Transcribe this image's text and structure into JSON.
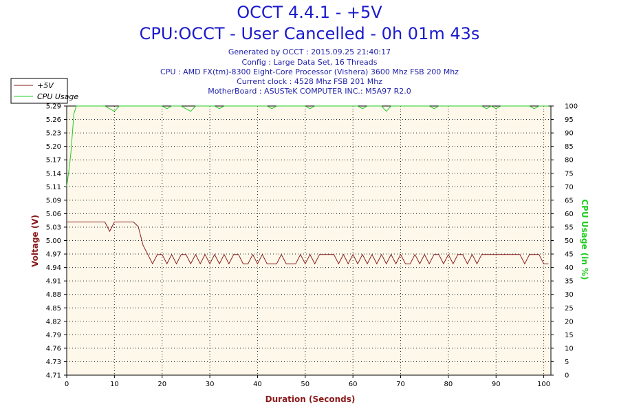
{
  "header": {
    "title": "OCCT 4.4.1 - +5V",
    "subtitle": "CPU:OCCT - User Cancelled - 0h 01m 43s",
    "info_lines": [
      "Generated by OCCT : 2015.09.25 21:40:17",
      "Config : Large Data Set, 16 Threads",
      "CPU : AMD FX(tm)-8300 Eight-Core Processor (Vishera) 3600 Mhz FSB 200 Mhz",
      "Current clock : 4528 Mhz FSB 201 Mhz",
      "MotherBoard : ASUSTeK COMPUTER INC.: M5A97 R2.0"
    ]
  },
  "colors": {
    "voltage": "#8b1a1a",
    "cpu": "#22cc22",
    "plot_bg": "#fdf8ea",
    "grid": "#222222"
  },
  "chart_data": {
    "type": "line",
    "xlabel": "Duration (Seconds)",
    "ylabel": "Voltage (V)",
    "y2label": "CPU Usage (in %)",
    "xlim": [
      0,
      101.5
    ],
    "ylim": [
      4.71,
      5.29
    ],
    "y2lim": [
      0,
      100
    ],
    "x_ticks": [
      0,
      10,
      20,
      30,
      40,
      50,
      60,
      70,
      80,
      90,
      100
    ],
    "y_ticks": [
      "4.71",
      "4.73",
      "4.76",
      "4.79",
      "4.82",
      "4.85",
      "4.88",
      "4.91",
      "4.94",
      "4.97",
      "5.00",
      "5.03",
      "5.06",
      "5.09",
      "5.11",
      "5.14",
      "5.17",
      "5.20",
      "5.23",
      "5.26",
      "5.29"
    ],
    "y2_ticks": [
      0,
      5,
      10,
      15,
      20,
      25,
      30,
      35,
      40,
      45,
      50,
      55,
      60,
      65,
      70,
      75,
      80,
      85,
      90,
      95,
      100
    ],
    "legend": {
      "position": "top-left",
      "entries": [
        "+5V",
        "CPU Usage"
      ]
    },
    "grid": true,
    "series": [
      {
        "name": "+5V",
        "axis": "left",
        "x": [
          0,
          1,
          2,
          3,
          4,
          5,
          6,
          7,
          8,
          9,
          10,
          11,
          12,
          13,
          14,
          15,
          16,
          17,
          18,
          19,
          20,
          21,
          22,
          23,
          24,
          25,
          26,
          27,
          28,
          29,
          30,
          31,
          32,
          33,
          34,
          35,
          36,
          37,
          38,
          39,
          40,
          41,
          42,
          43,
          44,
          45,
          46,
          47,
          48,
          49,
          50,
          51,
          52,
          53,
          54,
          55,
          56,
          57,
          58,
          59,
          60,
          61,
          62,
          63,
          64,
          65,
          66,
          67,
          68,
          69,
          70,
          71,
          72,
          73,
          74,
          75,
          76,
          77,
          78,
          79,
          80,
          81,
          82,
          83,
          84,
          85,
          86,
          87,
          88,
          89,
          90,
          91,
          92,
          93,
          94,
          95,
          96,
          97,
          98,
          99,
          100,
          101
        ],
        "values": [
          5.04,
          5.04,
          5.04,
          5.04,
          5.04,
          5.04,
          5.04,
          5.04,
          5.04,
          5.02,
          5.04,
          5.04,
          5.04,
          5.04,
          5.04,
          5.03,
          4.99,
          4.97,
          4.95,
          4.97,
          4.97,
          4.95,
          4.97,
          4.95,
          4.97,
          4.97,
          4.95,
          4.97,
          4.95,
          4.97,
          4.95,
          4.97,
          4.95,
          4.97,
          4.95,
          4.97,
          4.97,
          4.95,
          4.95,
          4.97,
          4.95,
          4.97,
          4.95,
          4.95,
          4.95,
          4.97,
          4.95,
          4.95,
          4.95,
          4.97,
          4.95,
          4.97,
          4.95,
          4.97,
          4.97,
          4.97,
          4.97,
          4.95,
          4.97,
          4.95,
          4.97,
          4.95,
          4.97,
          4.95,
          4.97,
          4.95,
          4.97,
          4.95,
          4.97,
          4.95,
          4.97,
          4.95,
          4.95,
          4.97,
          4.95,
          4.97,
          4.95,
          4.97,
          4.97,
          4.95,
          4.97,
          4.95,
          4.97,
          4.97,
          4.95,
          4.97,
          4.95,
          4.97,
          4.97,
          4.97,
          4.97,
          4.97,
          4.97,
          4.97,
          4.97,
          4.97,
          4.95,
          4.97,
          4.97,
          4.97,
          4.95,
          4.95
        ]
      },
      {
        "name": "CPU Usage",
        "axis": "right",
        "x": [
          0,
          0.3,
          0.6,
          0.9,
          1.2,
          1.5,
          2,
          3,
          4,
          5,
          6,
          7,
          8,
          9,
          10,
          11,
          12,
          13,
          14,
          15,
          16,
          17,
          18,
          19,
          20,
          21,
          22,
          23,
          24,
          25,
          26,
          27,
          28,
          29,
          30,
          31,
          32,
          33,
          34,
          35,
          36,
          37,
          38,
          39,
          40,
          41,
          42,
          43,
          44,
          45,
          46,
          47,
          48,
          49,
          50,
          51,
          52,
          53,
          54,
          55,
          56,
          57,
          58,
          59,
          60,
          61,
          62,
          63,
          64,
          65,
          66,
          67,
          68,
          69,
          70,
          71,
          72,
          73,
          74,
          75,
          76,
          77,
          78,
          79,
          80,
          81,
          82,
          83,
          84,
          85,
          86,
          87,
          88,
          89,
          90,
          91,
          92,
          93,
          94,
          95,
          96,
          97,
          98,
          99,
          100,
          101
        ],
        "values": [
          70,
          74,
          78,
          83,
          90,
          97,
          100,
          100,
          100,
          100,
          100,
          100,
          100,
          99,
          98,
          100,
          100,
          100,
          100,
          100,
          100,
          100,
          100,
          100,
          100,
          99,
          100,
          100,
          100,
          99,
          98,
          100,
          100,
          100,
          100,
          100,
          99,
          100,
          100,
          100,
          100,
          100,
          100,
          100,
          100,
          100,
          100,
          99,
          100,
          100,
          100,
          100,
          100,
          100,
          100,
          99,
          100,
          100,
          100,
          100,
          100,
          100,
          100,
          100,
          100,
          100,
          99,
          100,
          100,
          100,
          100,
          98,
          100,
          100,
          100,
          100,
          100,
          100,
          100,
          100,
          100,
          99,
          100,
          100,
          100,
          100,
          100,
          100,
          100,
          100,
          100,
          100,
          99,
          100,
          99,
          100,
          100,
          100,
          100,
          100,
          100,
          100,
          99,
          100,
          100,
          100
        ]
      }
    ]
  }
}
